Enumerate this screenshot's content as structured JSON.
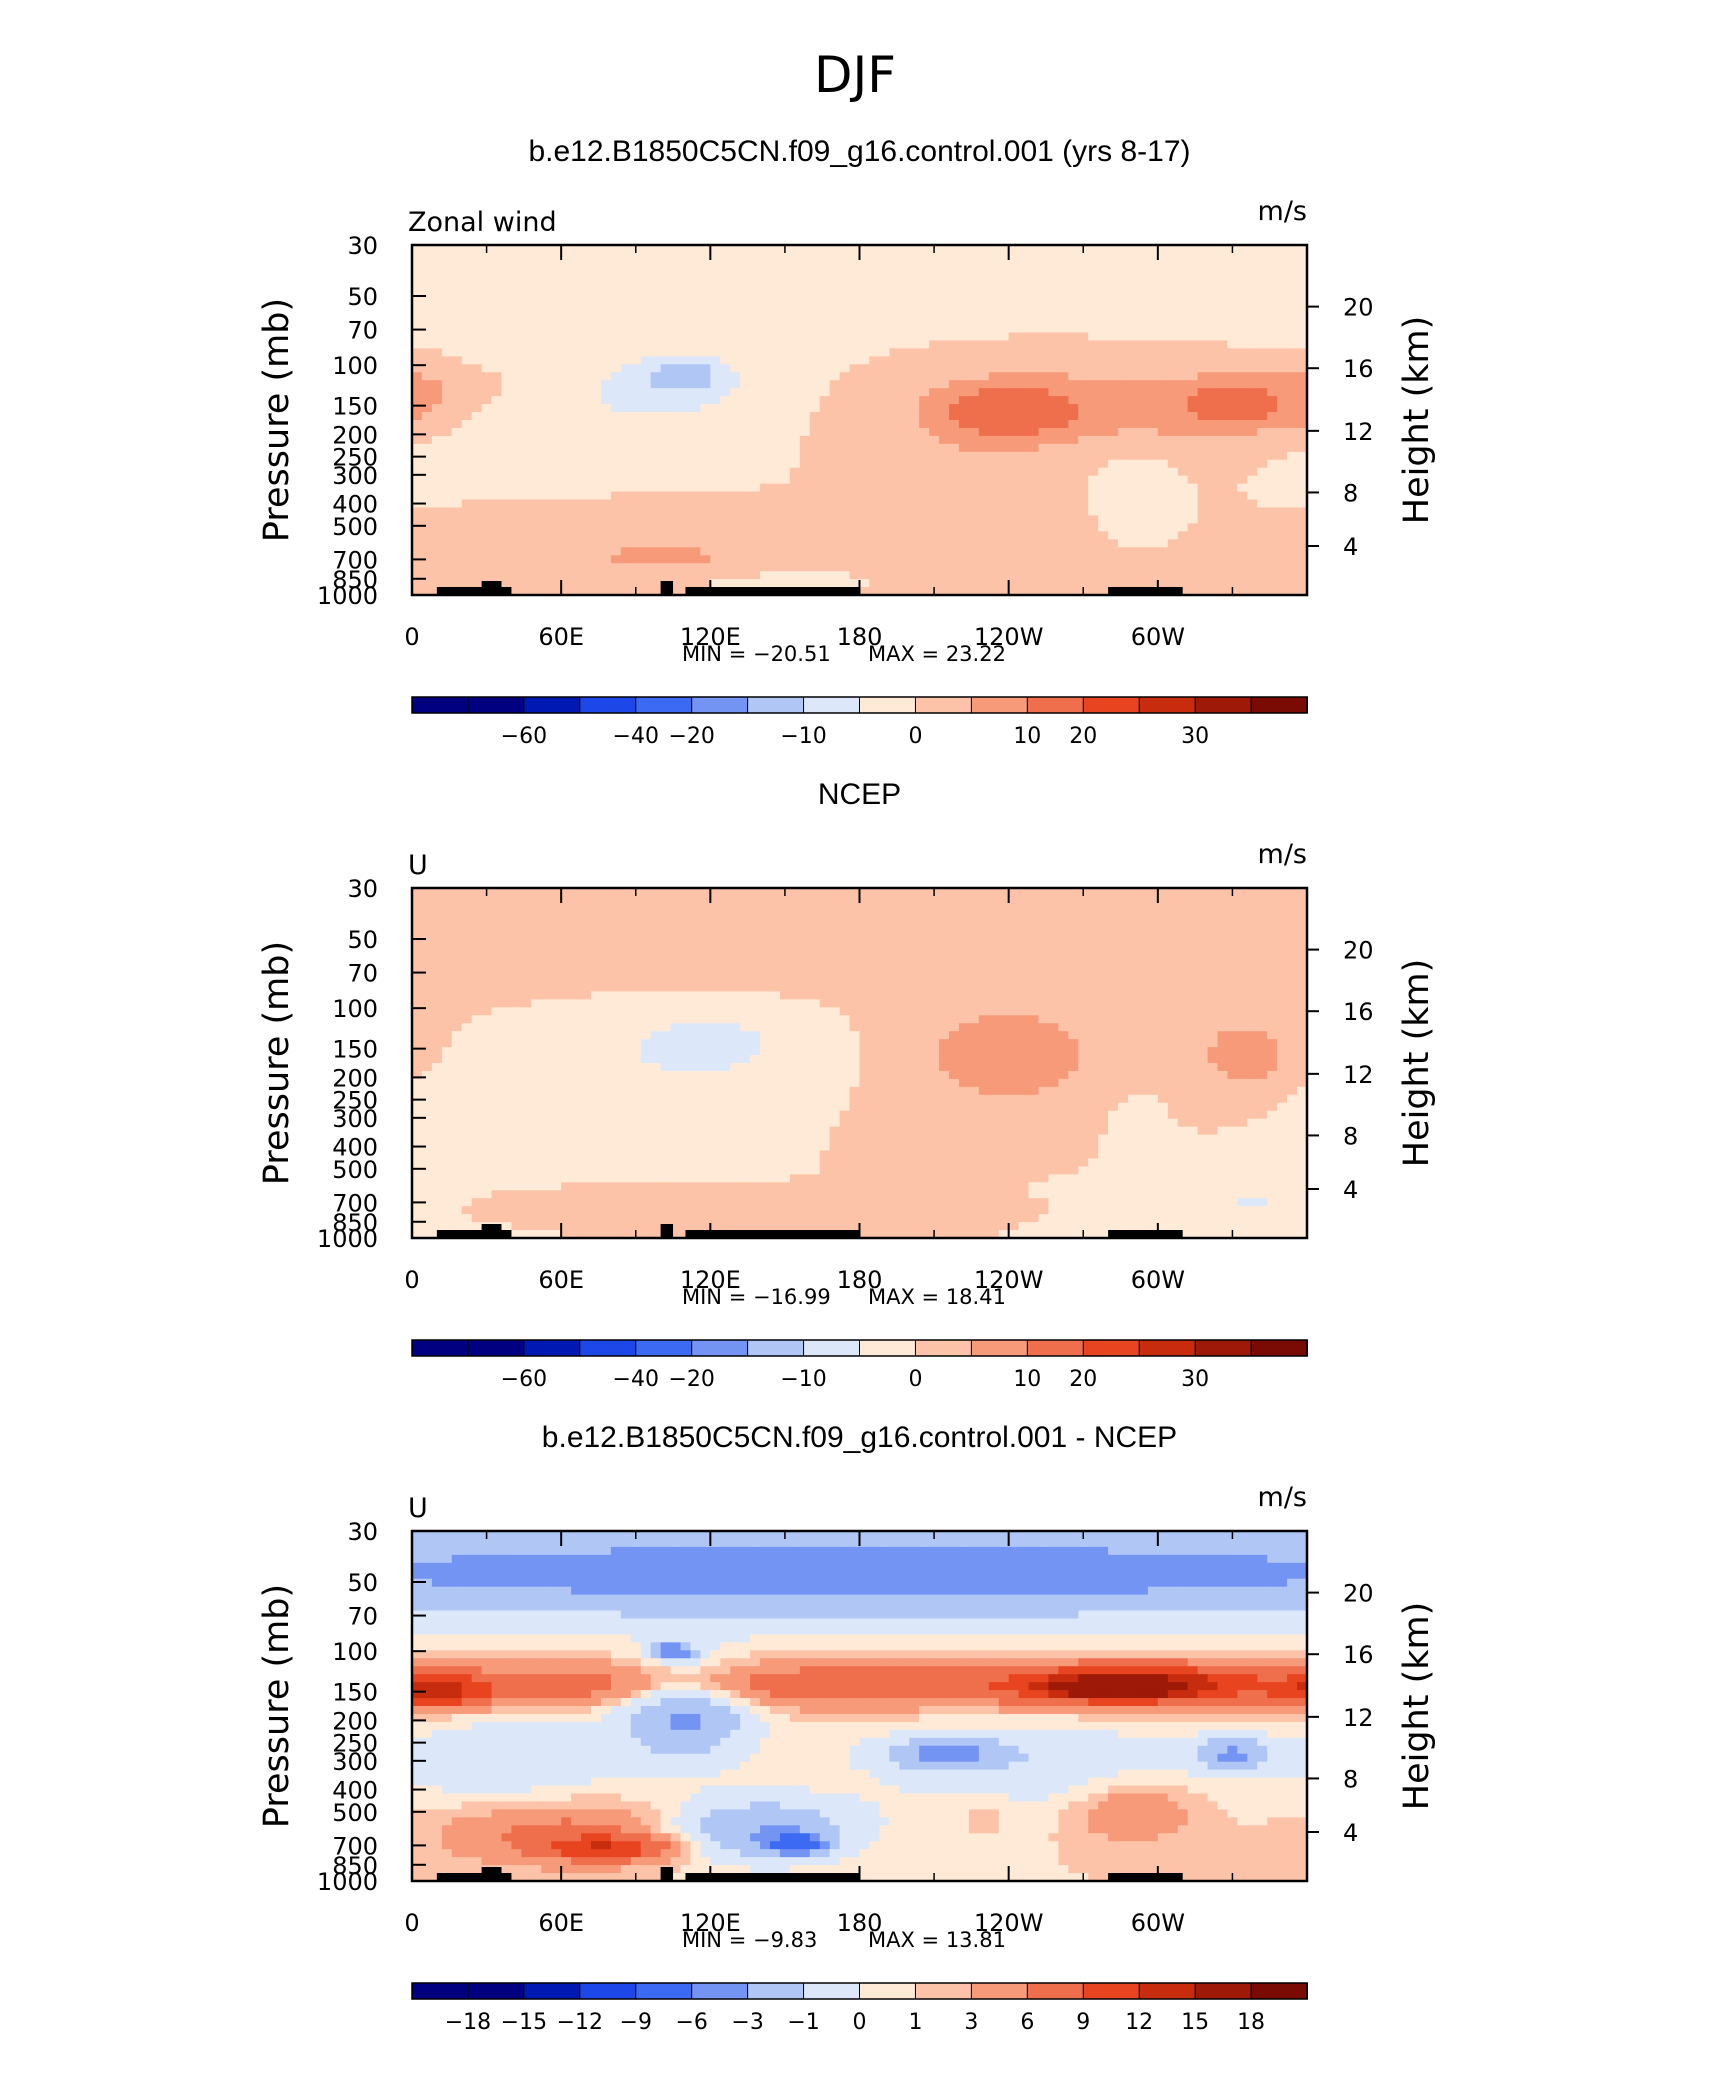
{
  "main_title": "DJF",
  "chart_data": [
    {
      "type": "heatmap",
      "title": "b.e12.B1850C5CN.f09_g16.control.001 (yrs 8-17)",
      "left_label": "Zonal wind",
      "units": "m/s",
      "ylabel": "Pressure (mb)",
      "ylabel_right": "Height (km)",
      "x_ticks": [
        "0",
        "60E",
        "120E",
        "180",
        "120W",
        "60W"
      ],
      "x_range": [
        0,
        360
      ],
      "y_ticks": [
        "30",
        "50",
        "70",
        "100",
        "150",
        "200",
        "250",
        "300",
        "400",
        "500",
        "700",
        "850",
        "1000"
      ],
      "y_range": [
        30,
        1000
      ],
      "height_ticks": [
        "20",
        "16",
        "12",
        "8",
        "4"
      ],
      "min_text": "MIN = −20.51",
      "max_text": "MAX = 23.22",
      "min": -20.51,
      "max": 23.22,
      "colorbar_levels": [
        "−60",
        "−40",
        "−20",
        "−10",
        "0",
        "10",
        "20",
        "30"
      ],
      "blobs": [
        {
          "lon": 180,
          "p": 40,
          "rx": 360,
          "ry": 1,
          "v": -3
        },
        {
          "lon": 100,
          "p": 130,
          "rx": 40,
          "ry": 0.35,
          "v": -14
        },
        {
          "lon": 110,
          "p": 110,
          "rx": 15,
          "ry": 0.15,
          "v": -20
        },
        {
          "lon": 50,
          "p": 230,
          "rx": 60,
          "ry": 0.3,
          "v": -6
        },
        {
          "lon": 150,
          "p": 880,
          "rx": 30,
          "ry": 0.1,
          "v": -3
        },
        {
          "lon": 0,
          "p": 140,
          "rx": 15,
          "ry": 0.35,
          "v": 8
        },
        {
          "lon": 10,
          "p": 120,
          "rx": 30,
          "ry": 0.15,
          "v": 4
        },
        {
          "lon": 255,
          "p": 150,
          "rx": 60,
          "ry": 0.5,
          "v": 14
        },
        {
          "lon": 240,
          "p": 160,
          "rx": 25,
          "ry": 0.25,
          "v": 23
        },
        {
          "lon": 330,
          "p": 150,
          "rx": 35,
          "ry": 0.35,
          "v": 17
        },
        {
          "lon": 330,
          "p": 150,
          "rx": 12,
          "ry": 0.15,
          "v": 21
        },
        {
          "lon": 215,
          "p": 400,
          "rx": 30,
          "ry": 0.7,
          "v": 7
        },
        {
          "lon": 100,
          "p": 600,
          "rx": 60,
          "ry": 0.3,
          "v": 6
        },
        {
          "lon": 100,
          "p": 700,
          "rx": 30,
          "ry": 0.12,
          "v": 10
        },
        {
          "lon": 290,
          "p": 300,
          "rx": 15,
          "ry": 0.3,
          "v": -5
        }
      ]
    },
    {
      "type": "heatmap",
      "title": "NCEP",
      "left_label": "U",
      "units": "m/s",
      "ylabel": "Pressure (mb)",
      "ylabel_right": "Height (km)",
      "x_ticks": [
        "0",
        "60E",
        "120E",
        "180",
        "120W",
        "60W"
      ],
      "x_range": [
        0,
        360
      ],
      "y_ticks": [
        "30",
        "50",
        "70",
        "100",
        "150",
        "200",
        "250",
        "300",
        "400",
        "500",
        "700",
        "850",
        "1000"
      ],
      "y_range": [
        30,
        1000
      ],
      "height_ticks": [
        "20",
        "16",
        "12",
        "8",
        "4"
      ],
      "min_text": "MIN = −16.99",
      "max_text": "MAX = 18.41",
      "min": -16.99,
      "max": 18.41,
      "colorbar_levels": [
        "−60",
        "−40",
        "−20",
        "−10",
        "0",
        "10",
        "20",
        "30"
      ],
      "blobs": [
        {
          "lon": 180,
          "p": 45,
          "rx": 360,
          "ry": 0.6,
          "v": 2
        },
        {
          "lon": 20,
          "p": 55,
          "rx": 20,
          "ry": 0.15,
          "v": 5
        },
        {
          "lon": 90,
          "p": 55,
          "rx": 25,
          "ry": 0.12,
          "v": 5
        },
        {
          "lon": 110,
          "p": 160,
          "rx": 50,
          "ry": 0.4,
          "v": -9
        },
        {
          "lon": 120,
          "p": 140,
          "rx": 20,
          "ry": 0.2,
          "v": -15
        },
        {
          "lon": 40,
          "p": 250,
          "rx": 60,
          "ry": 0.4,
          "v": -5
        },
        {
          "lon": 240,
          "p": 160,
          "rx": 40,
          "ry": 0.55,
          "v": 12
        },
        {
          "lon": 240,
          "p": 160,
          "rx": 20,
          "ry": 0.3,
          "v": 18
        },
        {
          "lon": 335,
          "p": 160,
          "rx": 25,
          "ry": 0.45,
          "v": 11
        },
        {
          "lon": 335,
          "p": 160,
          "rx": 10,
          "ry": 0.2,
          "v": 16
        },
        {
          "lon": 290,
          "p": 300,
          "rx": 12,
          "ry": 0.5,
          "v": -2
        },
        {
          "lon": 120,
          "p": 720,
          "rx": 70,
          "ry": 0.1,
          "v": 5
        },
        {
          "lon": 330,
          "p": 650,
          "rx": 40,
          "ry": 0.2,
          "v": -4
        },
        {
          "lon": 340,
          "p": 700,
          "rx": 12,
          "ry": 0.07,
          "v": -9
        }
      ]
    },
    {
      "type": "heatmap",
      "title": "b.e12.B1850C5CN.f09_g16.control.001 - NCEP",
      "left_label": "U",
      "units": "m/s",
      "ylabel": "Pressure (mb)",
      "ylabel_right": "Height (km)",
      "x_ticks": [
        "0",
        "60E",
        "120E",
        "180",
        "120W",
        "60W"
      ],
      "x_range": [
        0,
        360
      ],
      "y_ticks": [
        "30",
        "50",
        "70",
        "100",
        "150",
        "200",
        "250",
        "300",
        "400",
        "500",
        "700",
        "850",
        "1000"
      ],
      "y_range": [
        30,
        1000
      ],
      "height_ticks": [
        "20",
        "16",
        "12",
        "8",
        "4"
      ],
      "min_text": "MIN = −9.83",
      "max_text": "MAX = 13.81",
      "min": -9.83,
      "max": 13.81,
      "colorbar_levels": [
        "−18",
        "−15",
        "−12",
        "−9",
        "−6",
        "−3",
        "−1",
        "0",
        "1",
        "3",
        "6",
        "9",
        "12",
        "15",
        "18"
      ],
      "blobs": [
        {
          "lon": 180,
          "p": 45,
          "rx": 360,
          "ry": 0.45,
          "v": -8
        },
        {
          "lon": 180,
          "p": 140,
          "rx": 360,
          "ry": 0.22,
          "v": 5
        },
        {
          "lon": 290,
          "p": 140,
          "rx": 40,
          "ry": 0.18,
          "v": 10
        },
        {
          "lon": 280,
          "p": 145,
          "rx": 18,
          "ry": 0.08,
          "v": 13
        },
        {
          "lon": 10,
          "p": 150,
          "rx": 20,
          "ry": 0.15,
          "v": 8
        },
        {
          "lon": 110,
          "p": 180,
          "rx": 25,
          "ry": 0.45,
          "v": -7
        },
        {
          "lon": 105,
          "p": 100,
          "rx": 8,
          "ry": 0.08,
          "v": -9
        },
        {
          "lon": 140,
          "p": 600,
          "rx": 35,
          "ry": 0.3,
          "v": -6
        },
        {
          "lon": 155,
          "p": 690,
          "rx": 12,
          "ry": 0.1,
          "v": -9
        },
        {
          "lon": 215,
          "p": 280,
          "rx": 25,
          "ry": 0.15,
          "v": -6
        },
        {
          "lon": 330,
          "p": 280,
          "rx": 15,
          "ry": 0.15,
          "v": -6
        },
        {
          "lon": 60,
          "p": 620,
          "rx": 45,
          "ry": 0.3,
          "v": 4
        },
        {
          "lon": 80,
          "p": 720,
          "rx": 25,
          "ry": 0.12,
          "v": 7
        },
        {
          "lon": 290,
          "p": 500,
          "rx": 25,
          "ry": 0.3,
          "v": 3
        },
        {
          "lon": 230,
          "p": 500,
          "rx": 12,
          "ry": 0.2,
          "v": 1
        },
        {
          "lon": 40,
          "p": 300,
          "rx": 50,
          "ry": 0.5,
          "v": -2
        },
        {
          "lon": 250,
          "p": 320,
          "rx": 70,
          "ry": 0.5,
          "v": -2
        }
      ]
    }
  ],
  "colors": {
    "fill_scale": [
      "#000080",
      "#0019b3",
      "#1d47e6",
      "#3c6af2",
      "#7394f2",
      "#b0c6f5",
      "#dce8fa",
      "#ffead7",
      "#fcc3a9",
      "#f79a79",
      "#ef6e4c",
      "#e84420",
      "#c72c0f",
      "#9e1907",
      "#7a0a04"
    ],
    "frame": "#000000",
    "topography": "#000000"
  }
}
